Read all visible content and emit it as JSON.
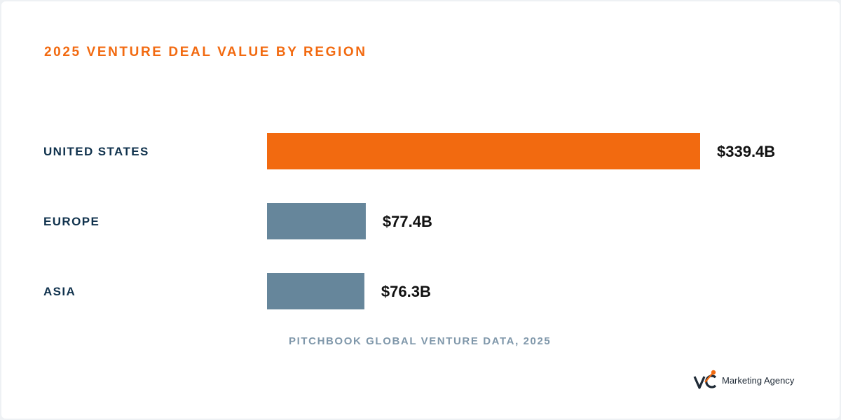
{
  "colors": {
    "accent": "#f26a10",
    "series_highlight": "#f26a10",
    "series_default": "#66869b",
    "category_text": "#10324d",
    "value_text": "#111111",
    "source_text": "#7f97aa"
  },
  "header": {
    "title": "2025 VENTURE DEAL VALUE BY REGION"
  },
  "footer": {
    "source": "PITCHBOOK GLOBAL VENTURE DATA, 2025"
  },
  "brand": {
    "logo_letters": "VC",
    "name": "Marketing Agency"
  },
  "chart_data": {
    "type": "bar",
    "orientation": "horizontal",
    "title": "2025 VENTURE DEAL VALUE BY REGION",
    "categories": [
      "UNITED STATES",
      "EUROPE",
      "ASIA"
    ],
    "values": [
      339.4,
      77.4,
      76.3
    ],
    "value_labels": [
      "$339.4B",
      "$77.4B",
      "$76.3B"
    ],
    "highlight_index": 0,
    "xlim": [
      0,
      339.4
    ],
    "grid": false,
    "legend": "none"
  }
}
